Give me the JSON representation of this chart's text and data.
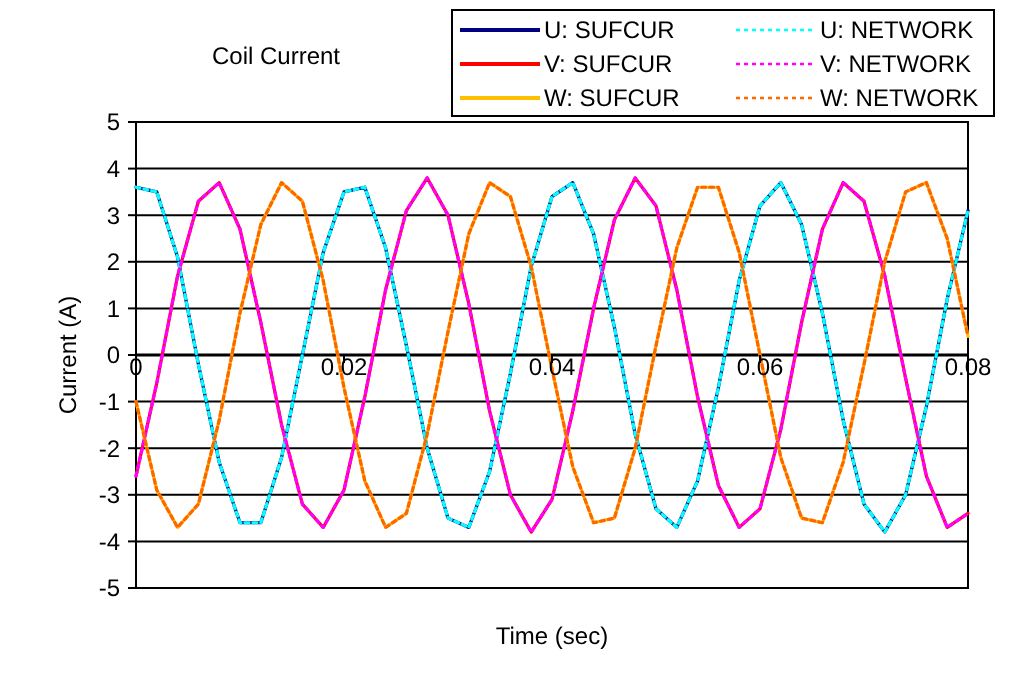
{
  "chart_data": {
    "type": "line",
    "title": "Coil Current",
    "xlabel": "Time (sec)",
    "ylabel": "Current (A)",
    "x": [
      0,
      0.002,
      0.004,
      0.006,
      0.008,
      0.01,
      0.012,
      0.014,
      0.016,
      0.018,
      0.02,
      0.022,
      0.024,
      0.026,
      0.028,
      0.03,
      0.032,
      0.034,
      0.036,
      0.038,
      0.04,
      0.042,
      0.044,
      0.046,
      0.048,
      0.05,
      0.052,
      0.054,
      0.056,
      0.058,
      0.06,
      0.062,
      0.064,
      0.066,
      0.068,
      0.07,
      0.072,
      0.074,
      0.076,
      0.078,
      0.08
    ],
    "xlim": [
      0,
      0.08
    ],
    "xticks": [
      0,
      0.02,
      0.04,
      0.06,
      0.08
    ],
    "ylim": [
      -5,
      5
    ],
    "yticks": [
      -5,
      -4,
      -3,
      -2,
      -1,
      0,
      1,
      2,
      3,
      4,
      5
    ],
    "grid": "y",
    "legend": "top right",
    "marker": "none",
    "series": [
      {
        "name": "U: SUFCUR",
        "color": "#000080",
        "line_style": "solid",
        "values": [
          3.6,
          3.5,
          2.1,
          -0.2,
          -2.3,
          -3.6,
          -3.6,
          -2.2,
          0,
          2.2,
          3.5,
          3.6,
          2.3,
          0.2,
          -2,
          -3.5,
          -3.7,
          -2.5,
          -0.4,
          1.9,
          3.4,
          3.7,
          2.6,
          0.6,
          -1.7,
          -3.3,
          -3.7,
          -2.7,
          -0.7,
          1.6,
          3.2,
          3.7,
          2.8,
          0.9,
          -1.4,
          -3.2,
          -3.8,
          -3,
          -1.1,
          1.2,
          3.1
        ]
      },
      {
        "name": "V: SUFCUR",
        "color": "#ff0000",
        "line_style": "solid",
        "values": [
          -2.6,
          -0.6,
          1.7,
          3.3,
          3.7,
          2.7,
          0.7,
          -1.5,
          -3.2,
          -3.7,
          -2.9,
          -0.9,
          1.4,
          3.1,
          3.8,
          3,
          1.1,
          -1.2,
          -3,
          -3.8,
          -3.1,
          -1.2,
          1,
          2.9,
          3.8,
          3.2,
          1.4,
          -0.9,
          -2.8,
          -3.7,
          -3.3,
          -1.6,
          0.7,
          2.7,
          3.7,
          3.3,
          1.7,
          -0.5,
          -2.6,
          -3.7,
          -3.4
        ]
      },
      {
        "name": "W: SUFCUR",
        "color": "#ffc000",
        "line_style": "solid",
        "values": [
          -1,
          -2.9,
          -3.7,
          -3.2,
          -1.4,
          0.9,
          2.8,
          3.7,
          3.3,
          1.6,
          -0.7,
          -2.7,
          -3.7,
          -3.4,
          -1.7,
          0.5,
          2.6,
          3.7,
          3.4,
          1.9,
          -0.3,
          -2.4,
          -3.6,
          -3.5,
          -2,
          0.2,
          2.3,
          3.6,
          3.6,
          2.2,
          0,
          -2.2,
          -3.5,
          -3.6,
          -2.3,
          -0.2,
          2,
          3.5,
          3.7,
          2.5,
          0.4
        ]
      },
      {
        "name": "U: NETWORK",
        "color": "#00ffff",
        "line_style": "dotted",
        "values": [
          3.6,
          3.5,
          2.1,
          -0.2,
          -2.3,
          -3.6,
          -3.6,
          -2.2,
          0,
          2.2,
          3.5,
          3.6,
          2.3,
          0.2,
          -2,
          -3.5,
          -3.7,
          -2.5,
          -0.4,
          1.9,
          3.4,
          3.7,
          2.6,
          0.6,
          -1.7,
          -3.3,
          -3.7,
          -2.7,
          -0.7,
          1.6,
          3.2,
          3.7,
          2.8,
          0.9,
          -1.4,
          -3.2,
          -3.8,
          -3,
          -1.1,
          1.2,
          3.1
        ]
      },
      {
        "name": "V: NETWORK",
        "color": "#ff00ff",
        "line_style": "dotted",
        "values": [
          -2.6,
          -0.6,
          1.7,
          3.3,
          3.7,
          2.7,
          0.7,
          -1.5,
          -3.2,
          -3.7,
          -2.9,
          -0.9,
          1.4,
          3.1,
          3.8,
          3,
          1.1,
          -1.2,
          -3,
          -3.8,
          -3.1,
          -1.2,
          1,
          2.9,
          3.8,
          3.2,
          1.4,
          -0.9,
          -2.8,
          -3.7,
          -3.3,
          -1.6,
          0.7,
          2.7,
          3.7,
          3.3,
          1.7,
          -0.5,
          -2.6,
          -3.7,
          -3.4
        ]
      },
      {
        "name": "W: NETWORK",
        "color": "#ff6600",
        "line_style": "dotted",
        "values": [
          -1,
          -2.9,
          -3.7,
          -3.2,
          -1.4,
          0.9,
          2.8,
          3.7,
          3.3,
          1.6,
          -0.7,
          -2.7,
          -3.7,
          -3.4,
          -1.7,
          0.5,
          2.6,
          3.7,
          3.4,
          1.9,
          -0.3,
          -2.4,
          -3.6,
          -3.5,
          -2,
          0.2,
          2.3,
          3.6,
          3.6,
          2.2,
          0,
          -2.2,
          -3.5,
          -3.6,
          -2.3,
          -0.2,
          2,
          3.5,
          3.7,
          2.5,
          0.4
        ]
      }
    ]
  }
}
